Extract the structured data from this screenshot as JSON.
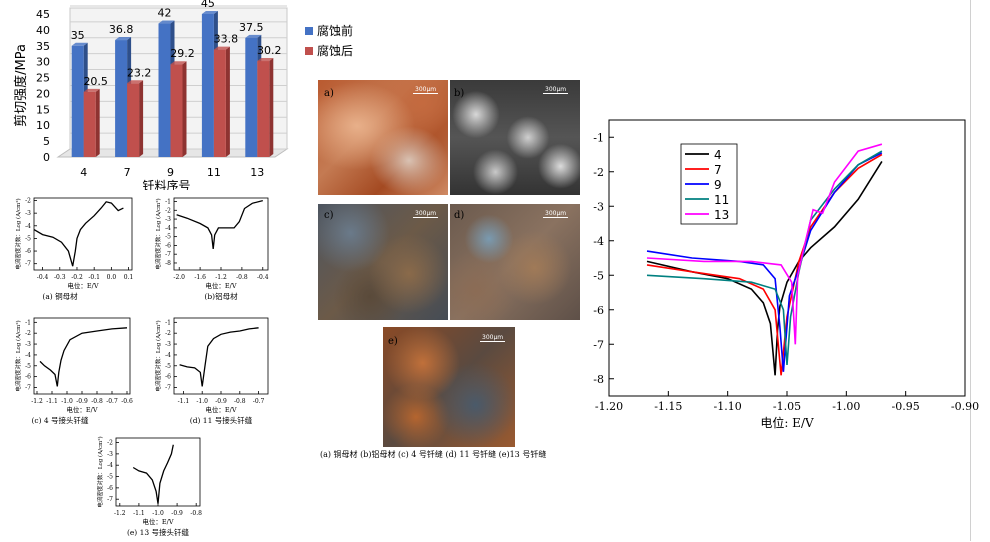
{
  "colors": {
    "before": "#4472c4",
    "after": "#c0504d",
    "s4": "#000000",
    "s7": "#ff0000",
    "s9": "#0000ff",
    "s11": "#008080",
    "s13": "#ff00ff"
  },
  "chart_data": [
    {
      "type": "bar",
      "categories": [
        "4",
        "7",
        "9",
        "11",
        "13"
      ],
      "series": [
        {
          "name": "腐蚀前",
          "values": [
            35,
            36.8,
            42,
            45,
            37.5
          ]
        },
        {
          "name": "腐蚀后",
          "values": [
            20.5,
            23.2,
            29.2,
            33.8,
            30.2
          ]
        }
      ],
      "ylabel": "剪切强度/MPa",
      "xlabel": "钎料序号",
      "ylim": [
        0,
        45
      ],
      "yticks": [
        "0",
        "5",
        "10",
        "15",
        "20",
        "25",
        "30",
        "35",
        "40",
        "45"
      ],
      "legend": "right"
    },
    {
      "type": "line",
      "panel": "a",
      "caption": "(a) 铜母材",
      "xlabel": "电位：E/V",
      "ylabel": "电流密度对数：Log (A/cm²)",
      "xticks": [
        "-0.4",
        "-0.3",
        "-0.2",
        "-0.1",
        "0.0",
        "0.1"
      ],
      "yticks": [
        "-2",
        "-3",
        "-4",
        "-5",
        "-6",
        "-7"
      ],
      "xlim": [
        -0.45,
        0.12
      ],
      "ylim": [
        -7.5,
        -1.8
      ],
      "x": [
        -0.45,
        -0.4,
        -0.34,
        -0.29,
        -0.25,
        -0.225,
        -0.21,
        -0.2,
        -0.18,
        -0.15,
        -0.1,
        -0.06,
        -0.03,
        0.0,
        0.04,
        0.07
      ],
      "y": [
        -4.3,
        -4.7,
        -4.9,
        -5.3,
        -6.0,
        -7.2,
        -6.0,
        -5.0,
        -4.3,
        -3.8,
        -3.2,
        -2.6,
        -2.1,
        -2.2,
        -2.8,
        -2.6
      ]
    },
    {
      "type": "line",
      "panel": "b",
      "caption": "(b)铝母材",
      "xlabel": "电位：E/V",
      "ylabel": "电流密度对数：Log (A/cm²)",
      "xticks": [
        "-2.0",
        "-1.6",
        "-1.2",
        "-0.8",
        "-0.4"
      ],
      "yticks": [
        "-1",
        "-2",
        "-3",
        "-4",
        "-5",
        "-6",
        "-7",
        "-8"
      ],
      "xlim": [
        -2.1,
        -0.3
      ],
      "ylim": [
        -8.8,
        -0.6
      ],
      "x": [
        -2.05,
        -1.85,
        -1.6,
        -1.45,
        -1.38,
        -1.35,
        -1.32,
        -1.25,
        -0.95,
        -0.85,
        -0.75,
        -0.6,
        -0.4
      ],
      "y": [
        -2.5,
        -2.9,
        -3.5,
        -4.0,
        -4.8,
        -6.4,
        -4.8,
        -4.0,
        -4.0,
        -3.3,
        -1.8,
        -1.2,
        -0.9
      ]
    },
    {
      "type": "line",
      "panel": "c",
      "caption": "(c) 4 号接头钎缝",
      "xlabel": "电位：E/V",
      "ylabel": "电流密度对数：Log (A/cm²)",
      "xticks": [
        "-1.2",
        "-1.1",
        "-1.0",
        "-0.9",
        "-0.8",
        "-0.7",
        "-0.6"
      ],
      "yticks": [
        "-1",
        "-2",
        "-3",
        "-4",
        "-5",
        "-6",
        "-7"
      ],
      "xlim": [
        -1.22,
        -0.58
      ],
      "ylim": [
        -7.6,
        -0.6
      ],
      "x": [
        -1.18,
        -1.15,
        -1.11,
        -1.08,
        -1.065,
        -1.055,
        -1.04,
        -1.02,
        -0.98,
        -0.9,
        -0.8,
        -0.7,
        -0.6
      ],
      "y": [
        -4.6,
        -5.0,
        -5.4,
        -5.8,
        -6.9,
        -5.6,
        -4.5,
        -3.6,
        -2.6,
        -2.0,
        -1.8,
        -1.6,
        -1.5
      ]
    },
    {
      "type": "line",
      "panel": "d",
      "caption": "(d) 11 号接头钎缝",
      "xlabel": "电位：E/V",
      "ylabel": "电流密度对数：Log (A/cm²)",
      "xticks": [
        "-1.1",
        "-1.0",
        "-0.9",
        "-0.8",
        "-0.7"
      ],
      "yticks": [
        "-1",
        "-2",
        "-3",
        "-4",
        "-5",
        "-6",
        "-7"
      ],
      "xlim": [
        -1.15,
        -0.65
      ],
      "ylim": [
        -7.6,
        -0.6
      ],
      "x": [
        -1.12,
        -1.08,
        -1.04,
        -1.01,
        -1.0,
        -0.985,
        -0.97,
        -0.94,
        -0.9,
        -0.85,
        -0.8,
        -0.75,
        -0.7
      ],
      "y": [
        -4.9,
        -5.1,
        -5.2,
        -5.6,
        -6.9,
        -5.0,
        -3.2,
        -2.5,
        -2.1,
        -1.9,
        -1.8,
        -1.6,
        -1.5
      ]
    },
    {
      "type": "line",
      "panel": "e",
      "caption": "(e) 13 号接头钎缝",
      "xlabel": "电位：E/V",
      "ylabel": "电流密度对数：Log (A/cm²)",
      "xticks": [
        "-1.2",
        "-1.1",
        "-1.0",
        "-0.9",
        "-0.8"
      ],
      "yticks": [
        "-2",
        "-3",
        "-4",
        "-5",
        "-6",
        "-7"
      ],
      "xlim": [
        -1.22,
        -0.78
      ],
      "ylim": [
        -7.6,
        -1.6
      ],
      "x": [
        -1.13,
        -1.1,
        -1.06,
        -1.03,
        -1.01,
        -1.0,
        -0.99,
        -0.97,
        -0.95,
        -0.93,
        -0.92
      ],
      "y": [
        -4.2,
        -4.5,
        -4.7,
        -5.3,
        -6.3,
        -7.4,
        -5.6,
        -4.5,
        -3.8,
        -3.0,
        -2.2
      ]
    },
    {
      "type": "line",
      "panel": "main",
      "xlabel": "电位: E/V",
      "xticks": [
        "-1.20",
        "-1.15",
        "-1.10",
        "-1.05",
        "-1.00",
        "-0.95",
        "-0.90"
      ],
      "yticks": [
        "-1",
        "-2",
        "-3",
        "-4",
        "-5",
        "-6",
        "-7",
        "-8"
      ],
      "xlim": [
        -1.2,
        -0.9
      ],
      "ylim": [
        -8.5,
        -0.5
      ],
      "legend": "top-left",
      "series": [
        {
          "name": "4",
          "x": [
            -1.168,
            -1.13,
            -1.1,
            -1.08,
            -1.07,
            -1.064,
            -1.06,
            -1.058,
            -1.056,
            -1.05,
            -1.04,
            -1.03,
            -1.01,
            -0.99,
            -0.97
          ],
          "y": [
            -4.6,
            -4.9,
            -5.1,
            -5.4,
            -5.8,
            -6.4,
            -7.9,
            -6.6,
            -5.9,
            -5.2,
            -4.6,
            -4.2,
            -3.6,
            -2.8,
            -1.7
          ]
        },
        {
          "name": "7",
          "x": [
            -1.168,
            -1.13,
            -1.09,
            -1.07,
            -1.06,
            -1.055,
            -1.05,
            -1.04,
            -1.03,
            -1.01,
            -0.99,
            -0.97
          ],
          "y": [
            -4.7,
            -4.9,
            -5.1,
            -5.4,
            -6.0,
            -7.9,
            -6.2,
            -4.6,
            -3.6,
            -2.6,
            -1.9,
            -1.5
          ]
        },
        {
          "name": "9",
          "x": [
            -1.168,
            -1.13,
            -1.09,
            -1.07,
            -1.06,
            -1.056,
            -1.053,
            -1.048,
            -1.04,
            -1.03,
            -1.01,
            -0.99,
            -0.97
          ],
          "y": [
            -4.3,
            -4.5,
            -4.6,
            -4.7,
            -5.1,
            -6.5,
            -7.8,
            -5.6,
            -4.8,
            -3.7,
            -2.6,
            -1.8,
            -1.45
          ]
        },
        {
          "name": "11",
          "x": [
            -1.168,
            -1.12,
            -1.08,
            -1.06,
            -1.053,
            -1.05,
            -1.047,
            -1.04,
            -1.03,
            -1.01,
            -0.99,
            -0.97
          ],
          "y": [
            -5.0,
            -5.1,
            -5.2,
            -5.4,
            -6.0,
            -7.6,
            -6.2,
            -4.9,
            -3.4,
            -2.5,
            -1.8,
            -1.4
          ]
        },
        {
          "name": "13",
          "x": [
            -1.168,
            -1.12,
            -1.08,
            -1.055,
            -1.046,
            -1.043,
            -1.041,
            -1.035,
            -1.028,
            -1.02,
            -1.01,
            -0.99,
            -0.97
          ],
          "y": [
            -4.5,
            -4.6,
            -4.6,
            -4.7,
            -5.2,
            -7.0,
            -5.0,
            -4.1,
            -3.1,
            -3.2,
            -2.3,
            -1.4,
            -1.2
          ]
        }
      ]
    }
  ],
  "photos": {
    "items": [
      {
        "label": "a)",
        "scale": "300μm"
      },
      {
        "label": "b)",
        "scale": "300μm"
      },
      {
        "label": "c)",
        "scale": "300μm"
      },
      {
        "label": "d)",
        "scale": "300μm"
      },
      {
        "label": "e)",
        "scale": "300μm"
      }
    ],
    "caption": "(a) 铜母材 (b)铝母材 (c) 4 号钎缝 (d) 11 号钎缝 (e)13 号钎缝"
  }
}
